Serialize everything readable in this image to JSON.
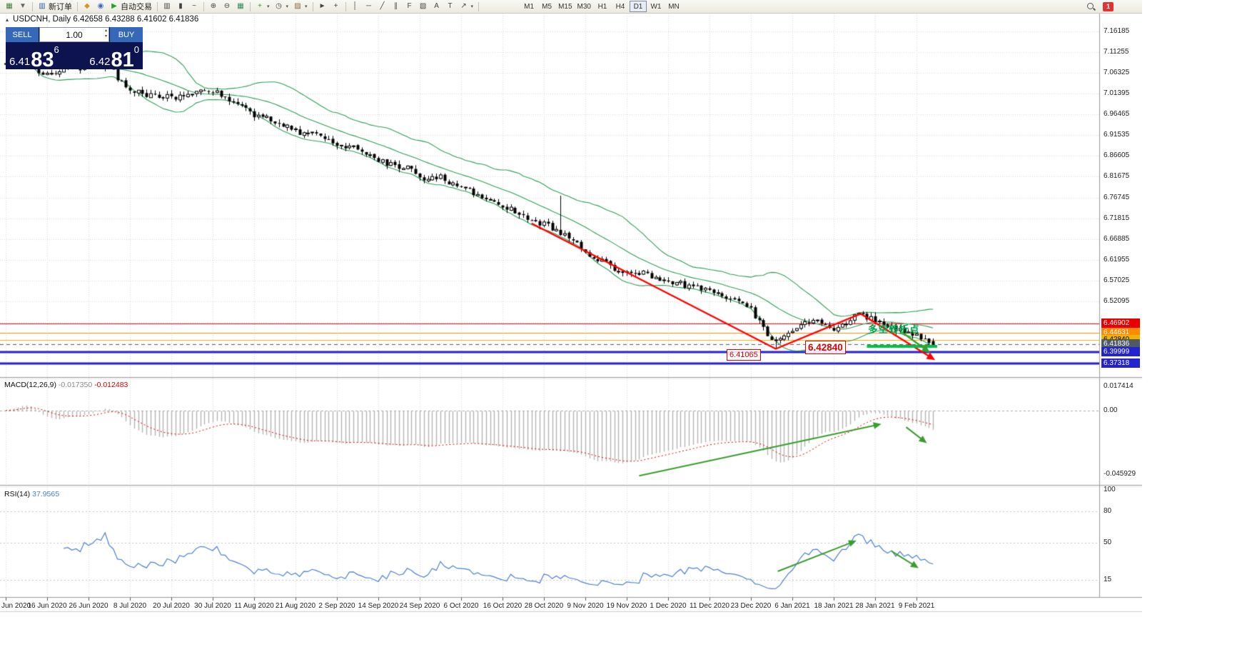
{
  "toolbar": {
    "buttons": [
      {
        "name": "new-chart",
        "glyph": "▦",
        "color": "#3f7f3f"
      },
      {
        "name": "profiles",
        "glyph": "▼",
        "color": "#666"
      },
      {
        "name": "sep"
      },
      {
        "name": "new-order",
        "glyph": "▥",
        "color": "#2e5fa3",
        "label": "新订单"
      },
      {
        "name": "sep"
      },
      {
        "name": "favorites",
        "glyph": "◆",
        "color": "#d49a1a"
      },
      {
        "name": "depth-of-market",
        "glyph": "◉",
        "color": "#3a66c8"
      },
      {
        "name": "algo-trading",
        "glyph": "▶",
        "color": "#1fa51f",
        "label": "自动交易"
      },
      {
        "name": "sep"
      },
      {
        "name": "bars-mode",
        "glyph": "▥",
        "color": "#444"
      },
      {
        "name": "candles-mode",
        "glyph": "▮",
        "color": "#444"
      },
      {
        "name": "line-mode",
        "glyph": "~",
        "color": "#444"
      },
      {
        "name": "sep"
      },
      {
        "name": "zoom-in",
        "glyph": "⊕",
        "color": "#444"
      },
      {
        "name": "zoom-out",
        "glyph": "⊖",
        "color": "#444"
      },
      {
        "name": "tile-windows",
        "glyph": "▦",
        "color": "#2e8b57"
      },
      {
        "name": "sep"
      },
      {
        "name": "indicators",
        "glyph": "+",
        "color": "#1fa51f",
        "dropdown": true
      },
      {
        "name": "periods",
        "glyph": "◷",
        "color": "#444",
        "dropdown": true
      },
      {
        "name": "templates",
        "glyph": "▨",
        "color": "#8a6a3a",
        "dropdown": true
      },
      {
        "name": "sep"
      },
      {
        "name": "cursor",
        "glyph": "►",
        "color": "#444"
      },
      {
        "name": "crosshair",
        "glyph": "+",
        "color": "#444"
      },
      {
        "name": "sep"
      },
      {
        "name": "vertical-line-tool",
        "glyph": "│",
        "color": "#444"
      },
      {
        "name": "horizontal-line-tool",
        "glyph": "─",
        "color": "#444"
      },
      {
        "name": "trendline-tool",
        "glyph": "╱",
        "color": "#444"
      },
      {
        "name": "channel-tool",
        "glyph": "∥",
        "color": "#444"
      },
      {
        "name": "fibonacci-tool",
        "glyph": "F",
        "color": "#444"
      },
      {
        "name": "shapes-tool",
        "glyph": "▧",
        "color": "#444"
      },
      {
        "name": "text-tool",
        "glyph": "A",
        "color": "#444"
      },
      {
        "name": "label-tool",
        "glyph": "T",
        "color": "#444"
      },
      {
        "name": "arrows-tool",
        "glyph": "↗",
        "color": "#444",
        "dropdown": true
      },
      {
        "name": "sep"
      }
    ],
    "timeframes": [
      "M1",
      "M5",
      "M15",
      "M30",
      "H1",
      "H4",
      "D1",
      "W1",
      "MN"
    ],
    "active_timeframe": "D1",
    "notification_count": "1"
  },
  "chart": {
    "title": "USDCNH, Daily  6.42658 6.43288 6.41602 6.41836",
    "price_axis_labels": [
      "7.16185",
      "7.11255",
      "7.06325",
      "7.01395",
      "6.96465",
      "6.91535",
      "6.86605",
      "6.81675",
      "6.76745",
      "6.71815",
      "6.66885",
      "6.61955",
      "6.57025",
      "6.52095"
    ],
    "levels": [
      {
        "label": "6.46902",
        "value": 6.46902,
        "color": "#e80000",
        "text_color": "#ffffff",
        "thickness": 1,
        "style": "solid"
      },
      {
        "label": "6.44631",
        "value": 6.44631,
        "color": "#ff8a00",
        "text_color": "#ffffff",
        "thickness": 1,
        "style": "solid"
      },
      {
        "label": "6.42840",
        "value": 6.4284,
        "color": "#f0b400",
        "text_color": "#000000",
        "thickness": 1,
        "style": "solid"
      },
      {
        "label": "6.41836",
        "value": 6.41836,
        "color": "#4e5a66",
        "text_color": "#ffffff",
        "thickness": 1,
        "style": "dashed"
      },
      {
        "label": "6.39999",
        "value": 6.39999,
        "color": "#2323d2",
        "text_color": "#ffffff",
        "thickness": 3,
        "style": "solid"
      },
      {
        "label": "6.37318",
        "value": 6.37318,
        "color": "#2323d2",
        "text_color": "#ffffff",
        "thickness": 3,
        "style": "solid"
      }
    ],
    "low_label": "6.41065",
    "level_label": "6.42840",
    "cn_note": "多空转折点"
  },
  "trade_panel": {
    "sell_label": "SELL",
    "buy_label": "BUY",
    "volume": "1.00",
    "sell_price": {
      "prefix": "6.41",
      "big": "83",
      "sup": "6"
    },
    "buy_price": {
      "prefix": "6.42",
      "big": "81",
      "sup": "0"
    }
  },
  "macd": {
    "label": "MACD(12,26,9)",
    "value1": "-0.017350",
    "value2": "-0.012483",
    "axis_labels": [
      {
        "text": "0.017414",
        "value": 0.017414
      },
      {
        "text": "0.00",
        "value": 0
      },
      {
        "text": "-0.045929",
        "value": -0.045929
      }
    ]
  },
  "rsi": {
    "label": "RSI(14)",
    "value": "37.9565",
    "axis_labels": [
      {
        "text": "100",
        "value": 100
      },
      {
        "text": "80",
        "value": 80
      },
      {
        "text": "50",
        "value": 50
      },
      {
        "text": "15",
        "value": 15
      }
    ],
    "levels": [
      80,
      50,
      15
    ]
  },
  "date_axis": [
    "Jun 2020",
    "16 Jun 2020",
    "26 Jun 2020",
    "8 Jul 2020",
    "20 Jul 2020",
    "30 Jul 2020",
    "11 Aug 2020",
    "21 Aug 2020",
    "2 Sep 2020",
    "14 Sep 2020",
    "24 Sep 2020",
    "6 Oct 2020",
    "16 Oct 2020",
    "28 Oct 2020",
    "9 Nov 2020",
    "19 Nov 2020",
    "1 Dec 2020",
    "11 Dec 2020",
    "23 Dec 2020",
    "6 Jan 2021",
    "18 Jan 2021",
    "28 Jan 2021",
    "9 Feb 2021"
  ],
  "chart_data": {
    "type": "candlestick",
    "symbol": "USDCNH",
    "timeframe": "Daily",
    "current_ohlc": {
      "open": 6.42658,
      "high": 6.43288,
      "low": 6.41602,
      "close": 6.41836
    },
    "visible_price_range": [
      6.343,
      7.204
    ],
    "candle_count": 225,
    "swing_low": 6.41065,
    "trend_keypoints": [
      [
        0,
        7.085
      ],
      [
        4,
        7.105
      ],
      [
        9,
        7.06
      ],
      [
        14,
        7.072
      ],
      [
        20,
        7.078
      ],
      [
        24,
        7.094
      ],
      [
        27,
        7.05
      ],
      [
        31,
        7.02
      ],
      [
        36,
        7.008
      ],
      [
        41,
        7.004
      ],
      [
        46,
        7.016
      ],
      [
        50,
        7.02
      ],
      [
        55,
        6.995
      ],
      [
        60,
        6.962
      ],
      [
        65,
        6.95
      ],
      [
        70,
        6.925
      ],
      [
        75,
        6.915
      ],
      [
        79,
        6.895
      ],
      [
        84,
        6.885
      ],
      [
        88,
        6.87
      ],
      [
        92,
        6.845
      ],
      [
        97,
        6.84
      ],
      [
        101,
        6.814
      ],
      [
        105,
        6.816
      ],
      [
        110,
        6.79
      ],
      [
        114,
        6.775
      ],
      [
        118,
        6.755
      ],
      [
        122,
        6.74
      ],
      [
        127,
        6.714
      ],
      [
        131,
        6.7
      ],
      [
        134,
        6.685
      ],
      [
        138,
        6.655
      ],
      [
        142,
        6.625
      ],
      [
        147,
        6.6
      ],
      [
        151,
        6.59
      ],
      [
        155,
        6.585
      ],
      [
        159,
        6.57
      ],
      [
        163,
        6.562
      ],
      [
        168,
        6.55
      ],
      [
        172,
        6.542
      ],
      [
        176,
        6.525
      ],
      [
        180,
        6.5
      ],
      [
        184,
        6.445
      ],
      [
        186,
        6.425
      ],
      [
        188,
        6.44
      ],
      [
        191,
        6.462
      ],
      [
        194,
        6.468
      ],
      [
        197,
        6.472
      ],
      [
        200,
        6.455
      ],
      [
        203,
        6.47
      ],
      [
        206,
        6.493
      ],
      [
        209,
        6.48
      ],
      [
        212,
        6.465
      ],
      [
        215,
        6.455
      ],
      [
        218,
        6.448
      ],
      [
        221,
        6.437
      ],
      [
        224,
        6.418
      ]
    ],
    "indicators": {
      "bollinger": {
        "period": 20,
        "deviation": 2
      },
      "macd": {
        "fast": 12,
        "slow": 26,
        "signal": 9
      },
      "rsi": {
        "period": 14
      }
    },
    "annotations": {
      "red_zigzag": [
        [
          127,
          6.706
        ],
        [
          186,
          6.408
        ],
        [
          206.5,
          6.4915
        ],
        [
          224.5,
          6.3815
        ]
      ],
      "green_support": {
        "i1": 208,
        "i2": 225,
        "price": 6.414
      },
      "green_arrow_main": {
        "i1": 216.5,
        "p1": 6.4475,
        "i2": 223.3,
        "p2": 6.3985
      },
      "macd_trendline": {
        "i1": 153,
        "v1": -0.047,
        "i2": 211.5,
        "v2": -0.0097
      },
      "macd_arrow": {
        "i1": 217.5,
        "v1": -0.012,
        "i2": 222.5,
        "v2": -0.0235
      },
      "rsi_trendline": {
        "i1": 186.5,
        "v1": 23,
        "i2": 205.5,
        "v2": 52
      },
      "rsi_arrow": {
        "i1": 214,
        "v1": 42,
        "i2": 220.5,
        "v2": 26
      }
    },
    "colors": {
      "bollinger": "#2f9e57",
      "candle_up": "#ffffff",
      "candle_down": "#000000",
      "macd_hist": "#b4b4b4",
      "macd_signal": "#e00000",
      "rsi_line": "#4a7fd4",
      "annotation_red": "#ff0000",
      "annotation_green": "#3a9d2e",
      "support_green": "#00c24a",
      "grid": "#d8d8d8"
    }
  }
}
